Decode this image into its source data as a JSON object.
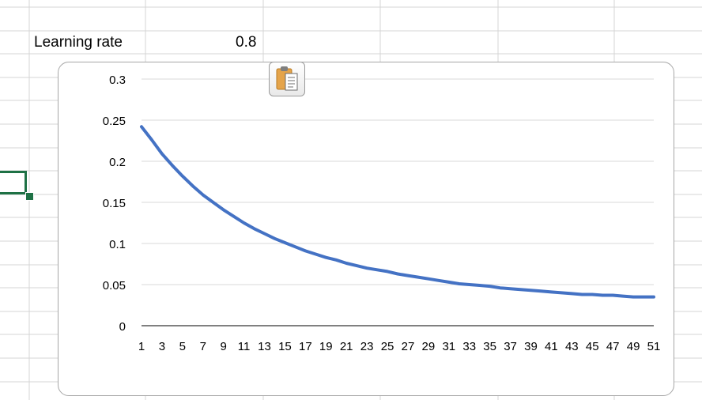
{
  "sheet": {
    "label_cell": "Learning rate",
    "value_cell": "0.8"
  },
  "colors": {
    "gridline": "#d4d4d4",
    "selection": "#1e7145",
    "series_line": "#4472c4",
    "chart_gridline": "#d9d9d9"
  },
  "paste_options": {
    "icon": "clipboard-icon"
  },
  "chart_data": {
    "type": "line",
    "title": "",
    "xlabel": "",
    "ylabel": "",
    "legend": "none",
    "grid": true,
    "ylim": [
      0,
      0.3
    ],
    "y_ticks": [
      "0",
      "0.05",
      "0.1",
      "0.15",
      "0.2",
      "0.25",
      "0.3"
    ],
    "x": [
      1,
      2,
      3,
      4,
      5,
      6,
      7,
      8,
      9,
      10,
      11,
      12,
      13,
      14,
      15,
      16,
      17,
      18,
      19,
      20,
      21,
      22,
      23,
      24,
      25,
      26,
      27,
      28,
      29,
      30,
      31,
      32,
      33,
      34,
      35,
      36,
      37,
      38,
      39,
      40,
      41,
      42,
      43,
      44,
      45,
      46,
      47,
      48,
      49,
      50,
      51
    ],
    "x_tick_labels": [
      "1",
      "3",
      "5",
      "7",
      "9",
      "11",
      "13",
      "15",
      "17",
      "19",
      "21",
      "23",
      "25",
      "27",
      "29",
      "31",
      "33",
      "35",
      "37",
      "39",
      "41",
      "43",
      "45",
      "47",
      "49",
      "51"
    ],
    "series": [
      {
        "values": [
          0.242,
          0.226,
          0.209,
          0.195,
          0.182,
          0.17,
          0.159,
          0.15,
          0.141,
          0.133,
          0.125,
          0.118,
          0.112,
          0.106,
          0.101,
          0.096,
          0.091,
          0.087,
          0.083,
          0.08,
          0.076,
          0.073,
          0.07,
          0.068,
          0.066,
          0.063,
          0.061,
          0.059,
          0.057,
          0.055,
          0.053,
          0.051,
          0.05,
          0.049,
          0.048,
          0.046,
          0.045,
          0.044,
          0.043,
          0.042,
          0.041,
          0.04,
          0.039,
          0.038,
          0.038,
          0.037,
          0.037,
          0.036,
          0.035,
          0.035,
          0.035
        ]
      }
    ]
  }
}
